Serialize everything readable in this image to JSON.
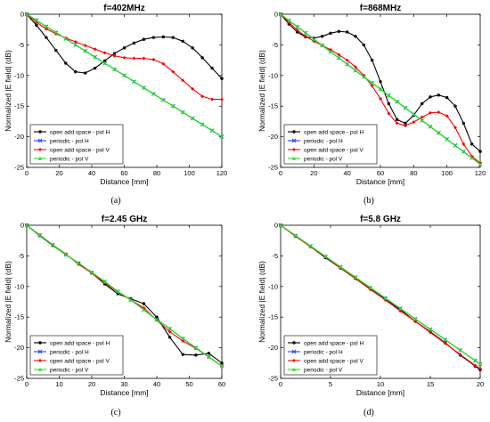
{
  "series_colors": [
    "#000000",
    "#1f3fff",
    "#ff0000",
    "#22dd22"
  ],
  "chart_data": [
    {
      "type": "line",
      "title": "f=402MHz",
      "xlabel": "Distance [mm]",
      "ylabel": "Normalized |E field| (dB)",
      "caption": "(a)",
      "xlim": [
        0,
        120
      ],
      "ylim": [
        -25,
        0
      ],
      "xticks": [
        0,
        20,
        40,
        60,
        80,
        100,
        120
      ],
      "yticks": [
        0,
        -5,
        -10,
        -15,
        -20,
        -25
      ],
      "grid": false,
      "legend_position": "bottom-left",
      "series": [
        {
          "name": "open add space - pol H",
          "marker": "circle",
          "x": [
            0,
            6,
            12,
            18,
            24,
            30,
            36,
            42,
            48,
            54,
            60,
            66,
            72,
            78,
            84,
            90,
            96,
            102,
            108,
            114,
            120
          ],
          "y": [
            0,
            -1.8,
            -3.8,
            -5.9,
            -8,
            -9.4,
            -9.6,
            -8.8,
            -7.6,
            -6.4,
            -5.5,
            -4.7,
            -4.1,
            -3.8,
            -3.7,
            -3.8,
            -4.4,
            -5.5,
            -7.1,
            -8.8,
            -10.5
          ]
        },
        {
          "name": "periodic - pol H",
          "marker": "x",
          "x": [
            0,
            6,
            12,
            18,
            24,
            30,
            36,
            42,
            48,
            54,
            60,
            66,
            72,
            78,
            84,
            90,
            96,
            102,
            108,
            114,
            120
          ],
          "y": [
            0,
            -1,
            -2,
            -3,
            -4,
            -5,
            -6,
            -7,
            -8,
            -9,
            -10,
            -11,
            -12,
            -13,
            -14,
            -15,
            -16,
            -17,
            -18,
            -19,
            -20
          ]
        },
        {
          "name": "open add space - pol V",
          "marker": "diamond",
          "x": [
            0,
            6,
            12,
            18,
            24,
            30,
            36,
            42,
            48,
            54,
            60,
            66,
            72,
            78,
            84,
            90,
            96,
            102,
            108,
            114,
            120
          ],
          "y": [
            0,
            -1.3,
            -2.4,
            -3.2,
            -3.9,
            -4.5,
            -5.1,
            -5.7,
            -6.3,
            -6.8,
            -7.1,
            -7.2,
            -7.2,
            -7.4,
            -8.1,
            -9.4,
            -10.8,
            -12.2,
            -13.4,
            -13.9,
            -13.9
          ]
        },
        {
          "name": "periodic - pol V",
          "marker": "triangle",
          "x": [
            0,
            6,
            12,
            18,
            24,
            30,
            36,
            42,
            48,
            54,
            60,
            66,
            72,
            78,
            84,
            90,
            96,
            102,
            108,
            114,
            120
          ],
          "y": [
            0,
            -1,
            -2,
            -3,
            -4,
            -5,
            -6,
            -7,
            -8,
            -9,
            -10,
            -11,
            -12,
            -13,
            -14,
            -15,
            -16,
            -17,
            -18,
            -19,
            -20
          ]
        }
      ]
    },
    {
      "type": "line",
      "title": "f=868MHz",
      "xlabel": "Distance [mm]",
      "ylabel": "Normalized |E field| (dB)",
      "caption": "(b)",
      "xlim": [
        0,
        120
      ],
      "ylim": [
        -25,
        0
      ],
      "xticks": [
        0,
        20,
        40,
        60,
        80,
        100,
        120
      ],
      "yticks": [
        0,
        -5,
        -10,
        -15,
        -20,
        -25
      ],
      "grid": false,
      "legend_position": "bottom-left",
      "series": [
        {
          "name": "open add space - pol H",
          "marker": "circle",
          "x": [
            0,
            5,
            10,
            15,
            20,
            25,
            30,
            35,
            40,
            45,
            50,
            55,
            60,
            65,
            70,
            75,
            80,
            85,
            90,
            95,
            100,
            105,
            110,
            115,
            120
          ],
          "y": [
            0,
            -1.6,
            -2.9,
            -3.7,
            -3.9,
            -3.6,
            -3.1,
            -2.8,
            -2.9,
            -3.6,
            -5,
            -7.5,
            -11,
            -14.6,
            -17.2,
            -17.8,
            -16.5,
            -14.6,
            -13.5,
            -13.2,
            -13.6,
            -15,
            -17.8,
            -21.2,
            -22.4
          ]
        },
        {
          "name": "periodic - pol H",
          "marker": "x",
          "x": [
            0,
            5,
            10,
            15,
            20,
            25,
            30,
            35,
            40,
            45,
            50,
            55,
            60,
            65,
            70,
            75,
            80,
            85,
            90,
            95,
            100,
            105,
            110,
            115,
            120
          ],
          "y": [
            0,
            -1.02,
            -2.04,
            -3.06,
            -4.08,
            -5.1,
            -6.12,
            -7.14,
            -8.16,
            -9.18,
            -10.2,
            -11.22,
            -12.24,
            -13.26,
            -14.28,
            -15.3,
            -16.32,
            -17.34,
            -18.36,
            -19.38,
            -20.4,
            -21.42,
            -22.44,
            -23.46,
            -24.5
          ]
        },
        {
          "name": "open add space - pol V",
          "marker": "diamond",
          "x": [
            0,
            5,
            10,
            15,
            20,
            25,
            30,
            35,
            40,
            45,
            50,
            55,
            60,
            65,
            70,
            75,
            80,
            85,
            90,
            95,
            100,
            105,
            110,
            115,
            120
          ],
          "y": [
            0,
            -1.3,
            -2.6,
            -3.6,
            -4.4,
            -5.1,
            -5.8,
            -6.6,
            -7.5,
            -8.6,
            -10,
            -11.7,
            -13.8,
            -16.2,
            -17.8,
            -18.2,
            -17.6,
            -16.8,
            -16.1,
            -16,
            -16.6,
            -18.5,
            -21.2,
            -23.2,
            -24.3
          ]
        },
        {
          "name": "periodic - pol V",
          "marker": "triangle",
          "x": [
            0,
            5,
            10,
            15,
            20,
            25,
            30,
            35,
            40,
            45,
            50,
            55,
            60,
            65,
            70,
            75,
            80,
            85,
            90,
            95,
            100,
            105,
            110,
            115,
            120
          ],
          "y": [
            0,
            -1.02,
            -2.04,
            -3.06,
            -4.08,
            -5.1,
            -6.12,
            -7.14,
            -8.16,
            -9.18,
            -10.2,
            -11.22,
            -12.24,
            -13.26,
            -14.28,
            -15.3,
            -16.32,
            -17.34,
            -18.36,
            -19.38,
            -20.4,
            -21.42,
            -22.44,
            -23.46,
            -24.5
          ]
        }
      ]
    },
    {
      "type": "line",
      "title": "f=2.45 GHz",
      "xlabel": "Distance [mm]",
      "ylabel": "Normalized |E field| (dB)",
      "caption": "(c)",
      "xlim": [
        0,
        60
      ],
      "ylim": [
        -25,
        0
      ],
      "xticks": [
        0,
        10,
        20,
        30,
        40,
        50,
        60
      ],
      "yticks": [
        0,
        -5,
        -10,
        -15,
        -20,
        -25
      ],
      "grid": false,
      "legend_position": "bottom-left",
      "series": [
        {
          "name": "open add space - pol H",
          "marker": "circle",
          "x": [
            0,
            4,
            8,
            12,
            16,
            20,
            24,
            28,
            32,
            36,
            40,
            44,
            48,
            52,
            56,
            60
          ],
          "y": [
            0,
            -1.7,
            -3.3,
            -4.8,
            -6.2,
            -7.8,
            -9.6,
            -11.2,
            -12,
            -12.8,
            -15,
            -18.3,
            -21.1,
            -21.2,
            -20.9,
            -22.5
          ]
        },
        {
          "name": "periodic - pol H",
          "marker": "x",
          "x": [
            0,
            4,
            8,
            12,
            16,
            20,
            24,
            28,
            32,
            36,
            40,
            44,
            48,
            52,
            56,
            60
          ],
          "y": [
            0,
            -1.6,
            -3.2,
            -4.8,
            -6.2,
            -7.7,
            -9.2,
            -10.8,
            -12.2,
            -13.8,
            -15.4,
            -16.9,
            -18.5,
            -20,
            -21.5,
            -23
          ]
        },
        {
          "name": "open add space - pol V",
          "marker": "diamond",
          "x": [
            0,
            4,
            8,
            12,
            16,
            20,
            24,
            28,
            32,
            36,
            40,
            44,
            48,
            52,
            56,
            60
          ],
          "y": [
            0,
            -1.6,
            -3.2,
            -4.7,
            -6.4,
            -7.8,
            -9.4,
            -10.9,
            -12.2,
            -13.5,
            -15.5,
            -17.4,
            -18.9,
            -20.1,
            -21.5,
            -23
          ]
        },
        {
          "name": "periodic - pol V",
          "marker": "triangle",
          "x": [
            0,
            4,
            8,
            12,
            16,
            20,
            24,
            28,
            32,
            36,
            40,
            44,
            48,
            52,
            56,
            60
          ],
          "y": [
            0,
            -1.6,
            -3.2,
            -4.8,
            -6.2,
            -7.7,
            -9.2,
            -10.8,
            -12.2,
            -13.8,
            -15.4,
            -16.9,
            -18.5,
            -20,
            -21.5,
            -23
          ]
        }
      ]
    },
    {
      "type": "line",
      "title": "f=5.8 GHz",
      "xlabel": "Distance [mm]",
      "ylabel": "Normalized |E field| (dB)",
      "caption": "(d)",
      "xlim": [
        0,
        20
      ],
      "ylim": [
        -25,
        0
      ],
      "xticks": [
        0,
        5,
        10,
        15,
        20
      ],
      "yticks": [
        0,
        -5,
        -10,
        -15,
        -20,
        -25
      ],
      "grid": false,
      "legend_position": "bottom-left",
      "series": [
        {
          "name": "open add space - pol H",
          "marker": "circle",
          "x": [
            0,
            1.5,
            3,
            4.5,
            6,
            7.5,
            9,
            10.5,
            12,
            13.5,
            15,
            16.5,
            18,
            19.5,
            20
          ],
          "y": [
            0,
            -1.8,
            -3.5,
            -5.3,
            -7,
            -8.7,
            -10.4,
            -12.1,
            -13.8,
            -15.7,
            -17.4,
            -19.2,
            -21.2,
            -23,
            -23.6
          ]
        },
        {
          "name": "periodic - pol H",
          "marker": "x",
          "x": [
            0,
            1.5,
            3,
            4.5,
            6,
            7.5,
            9,
            10.5,
            12,
            13.5,
            15,
            16.5,
            18,
            19.5,
            20
          ],
          "y": [
            0,
            -1.7,
            -3.4,
            -5.1,
            -6.8,
            -8.5,
            -10.2,
            -11.9,
            -13.6,
            -15.3,
            -17,
            -18.7,
            -20.4,
            -22.1,
            -22.7
          ]
        },
        {
          "name": "open add space - pol V",
          "marker": "diamond",
          "x": [
            0,
            1.5,
            3,
            4.5,
            6,
            7.5,
            9,
            10.5,
            12,
            13.5,
            15,
            16.5,
            18,
            19.5,
            20
          ],
          "y": [
            0,
            -1.8,
            -3.5,
            -5.2,
            -7,
            -8.7,
            -10.5,
            -12.2,
            -14,
            -15.7,
            -17.5,
            -19.3,
            -21.1,
            -22.9,
            -23.4
          ]
        },
        {
          "name": "periodic - pol V",
          "marker": "triangle",
          "x": [
            0,
            1.5,
            3,
            4.5,
            6,
            7.5,
            9,
            10.5,
            12,
            13.5,
            15,
            16.5,
            18,
            19.5,
            20
          ],
          "y": [
            0,
            -1.7,
            -3.4,
            -5.1,
            -6.8,
            -8.5,
            -10.2,
            -11.9,
            -13.6,
            -15.3,
            -17,
            -18.7,
            -20.4,
            -22.1,
            -22.7
          ]
        }
      ]
    }
  ]
}
